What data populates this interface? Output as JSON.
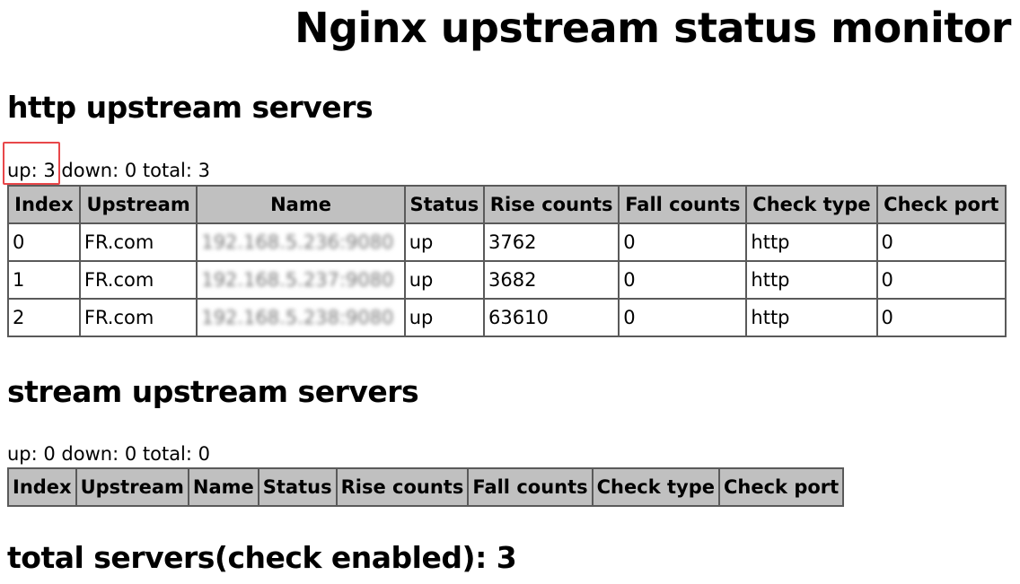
{
  "title": "Nginx upstream status monitor",
  "http": {
    "heading": "http upstream servers",
    "summary": "up: 3 down: 0 total: 3",
    "columns": [
      "Index",
      "Upstream",
      "Name",
      "Status",
      "Rise counts",
      "Fall counts",
      "Check type",
      "Check port"
    ],
    "rows": [
      [
        "0",
        "FR.com",
        "192.168.5.236:9080",
        "up",
        "3762",
        "0",
        "http",
        "0"
      ],
      [
        "1",
        "FR.com",
        "192.168.5.237:9080",
        "up",
        "3682",
        "0",
        "http",
        "0"
      ],
      [
        "2",
        "FR.com",
        "192.168.5.238:9080",
        "up",
        "63610",
        "0",
        "http",
        "0"
      ]
    ]
  },
  "stream": {
    "heading": "stream upstream servers",
    "summary": "up: 0 down: 0 total: 0",
    "columns": [
      "Index",
      "Upstream",
      "Name",
      "Status",
      "Rise counts",
      "Fall counts",
      "Check type",
      "Check port"
    ]
  },
  "total": "total servers(check enabled): 3",
  "colors": {
    "highlight": "#e8474a",
    "header_bg": "#c0c0c0"
  }
}
